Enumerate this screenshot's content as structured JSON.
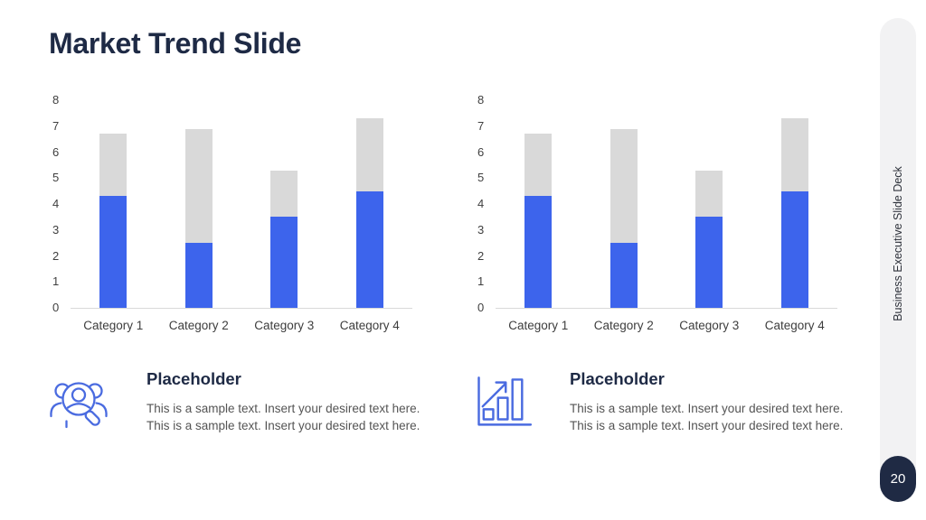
{
  "slide": {
    "title": "Market Trend Slide",
    "sidebar_text": "Business Executive Slide Deck",
    "page_number": "20"
  },
  "colors": {
    "accent_blue": "#3d64ec",
    "bar_gray": "#d9d9d9",
    "navy": "#1e2a45",
    "badge_bg": "#1f2a44",
    "icon_blue": "#4a6be0",
    "axis_line": "#d9d9d9",
    "axis_text": "#3f3f3f",
    "body_text": "#545454",
    "sidebar_bg": "#f2f2f3"
  },
  "chart_data": [
    {
      "type": "bar",
      "stacked": true,
      "title": "",
      "xlabel": "",
      "ylabel": "",
      "categories": [
        "Category 1",
        "Category 2",
        "Category 3",
        "Category 4"
      ],
      "series": [
        {
          "name": "series-1-blue",
          "color_key": "accent_blue",
          "values": [
            4.3,
            2.5,
            3.5,
            4.5
          ]
        },
        {
          "name": "series-2-gray",
          "color_key": "bar_gray",
          "values": [
            2.4,
            4.4,
            1.8,
            2.8
          ]
        }
      ],
      "ylim": [
        0,
        8
      ],
      "yticks": [
        0,
        1,
        2,
        3,
        4,
        5,
        6,
        7,
        8
      ],
      "grid": false,
      "legend": "none"
    },
    {
      "type": "bar",
      "stacked": true,
      "title": "",
      "xlabel": "",
      "ylabel": "",
      "categories": [
        "Category 1",
        "Category 2",
        "Category 3",
        "Category 4"
      ],
      "series": [
        {
          "name": "series-1-blue",
          "color_key": "accent_blue",
          "values": [
            4.3,
            2.5,
            3.5,
            4.5
          ]
        },
        {
          "name": "series-2-gray",
          "color_key": "bar_gray",
          "values": [
            2.4,
            4.4,
            1.8,
            2.8
          ]
        }
      ],
      "ylim": [
        0,
        8
      ],
      "yticks": [
        0,
        1,
        2,
        3,
        4,
        5,
        6,
        7,
        8
      ],
      "grid": false,
      "legend": "none"
    }
  ],
  "placeholders": [
    {
      "icon": "people-search-icon",
      "title": "Placeholder",
      "body": "This is a sample text. Insert your desired text here. This is a sample text. Insert your desired text here."
    },
    {
      "icon": "growth-bar-chart-icon",
      "title": "Placeholder",
      "body": "This is a sample text. Insert your desired text here. This is a sample text. Insert your desired text here."
    }
  ]
}
